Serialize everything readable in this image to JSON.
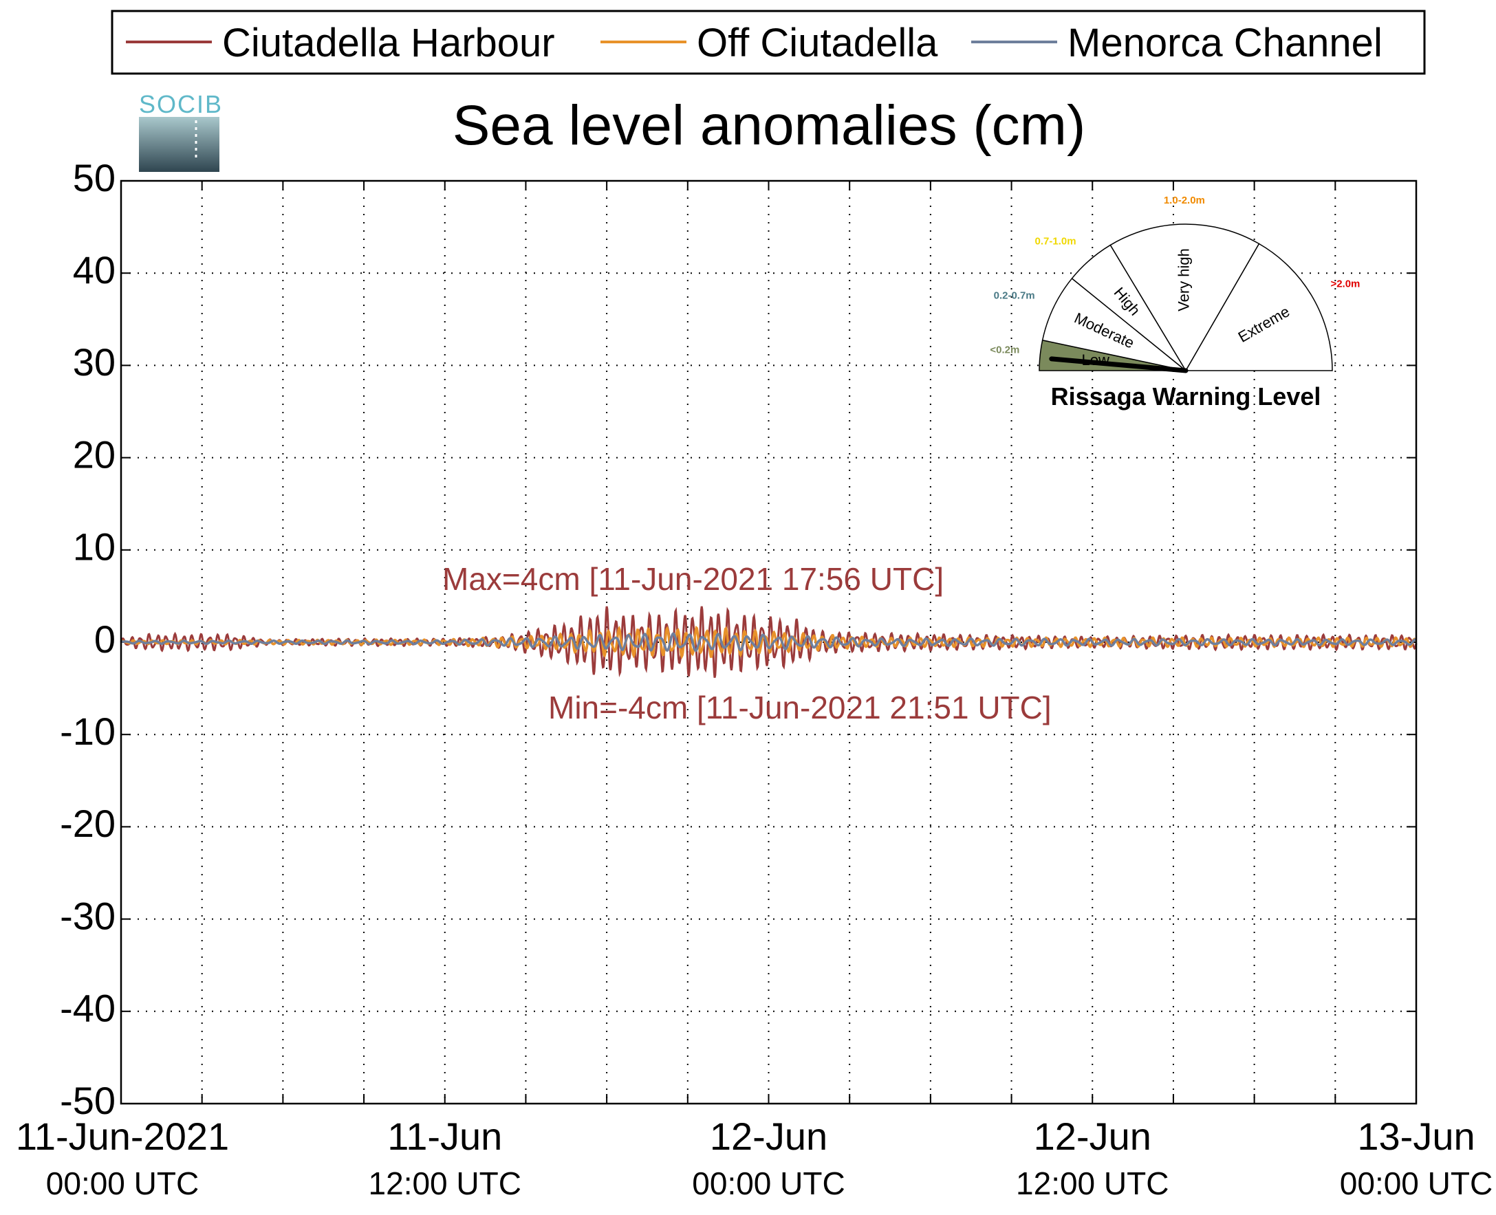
{
  "chart_data": {
    "type": "line",
    "title": "Sea level anomalies (cm)",
    "ylim": [
      -50,
      50
    ],
    "yticks": [
      50,
      40,
      30,
      20,
      10,
      0,
      -10,
      -20,
      -30,
      -40,
      -50
    ],
    "ytick_labels": [
      "50",
      "40",
      "30",
      "20",
      "10",
      "0",
      "-10",
      "-20",
      "-30",
      "-40",
      "-50"
    ],
    "xlim_hours": [
      0,
      48
    ],
    "xticks": [
      {
        "date": "11-Jun-2021",
        "time": "00:00 UTC"
      },
      {
        "date": "11-Jun",
        "time": "12:00 UTC"
      },
      {
        "date": "12-Jun",
        "time": "00:00 UTC"
      },
      {
        "date": "12-Jun",
        "time": "12:00 UTC"
      },
      {
        "date": "13-Jun",
        "time": "00:00 UTC"
      }
    ],
    "grid": true,
    "legend_position": "top",
    "series": [
      {
        "name": "Ciutadella Harbour",
        "color": "#9b3b3b",
        "envelope": [
          {
            "t": 0,
            "amp": 0.4
          },
          {
            "t": 1,
            "amp": 0.9
          },
          {
            "t": 4,
            "amp": 0.9
          },
          {
            "t": 5.5,
            "amp": 0.3
          },
          {
            "t": 8,
            "amp": 0.4
          },
          {
            "t": 12,
            "amp": 0.4
          },
          {
            "t": 14,
            "amp": 0.6
          },
          {
            "t": 15,
            "amp": 1.2
          },
          {
            "t": 16.5,
            "amp": 2.2
          },
          {
            "t": 17.9,
            "amp": 4.0
          },
          {
            "t": 19,
            "amp": 3.0
          },
          {
            "t": 20.5,
            "amp": 3.5
          },
          {
            "t": 21.8,
            "amp": 4.0
          },
          {
            "t": 23.5,
            "amp": 3.0
          },
          {
            "t": 25,
            "amp": 2.6
          },
          {
            "t": 26,
            "amp": 1.2
          },
          {
            "t": 28,
            "amp": 1.0
          },
          {
            "t": 32,
            "amp": 0.8
          },
          {
            "t": 36,
            "amp": 0.6
          },
          {
            "t": 40,
            "amp": 0.8
          },
          {
            "t": 44,
            "amp": 0.8
          },
          {
            "t": 48,
            "amp": 0.8
          }
        ]
      },
      {
        "name": "Off Ciutadella",
        "color": "#e8922a",
        "envelope": [
          {
            "t": 0,
            "amp": 0.2
          },
          {
            "t": 12,
            "amp": 0.3
          },
          {
            "t": 16,
            "amp": 0.8
          },
          {
            "t": 18,
            "amp": 1.5
          },
          {
            "t": 22,
            "amp": 1.6
          },
          {
            "t": 25,
            "amp": 1.0
          },
          {
            "t": 28,
            "amp": 0.5
          },
          {
            "t": 36,
            "amp": 0.5
          },
          {
            "t": 48,
            "amp": 0.5
          }
        ]
      },
      {
        "name": "Menorca Channel",
        "color": "#6e7f9c",
        "envelope": [
          {
            "t": 0,
            "amp": 0.15
          },
          {
            "t": 12,
            "amp": 0.2
          },
          {
            "t": 16,
            "amp": 0.6
          },
          {
            "t": 20,
            "amp": 1.0
          },
          {
            "t": 24,
            "amp": 0.8
          },
          {
            "t": 28,
            "amp": 0.4
          },
          {
            "t": 48,
            "amp": 0.3
          }
        ]
      }
    ],
    "annotations": {
      "max": "Max=4cm [11-Jun-2021 17:56 UTC]",
      "min": "Min=-4cm [11-Jun-2021 21:51 UTC]"
    }
  },
  "logo": {
    "text": "SOCIB"
  },
  "gauge": {
    "title": "Rissaga Warning Level",
    "current_level": "Low",
    "sectors": [
      {
        "label": "Low",
        "range": "<0.2m",
        "color": "#7b8a5c"
      },
      {
        "label": "Moderate",
        "range": "0.2-0.7m",
        "color": "#4a7a86"
      },
      {
        "label": "High",
        "range": "0.7-1.0m",
        "color": "#f0d800"
      },
      {
        "label": "Very high",
        "range": "1.0-2.0m",
        "color": "#f08a00"
      },
      {
        "label": "Extreme",
        "range": ">2.0m",
        "color": "#e00000"
      }
    ]
  }
}
